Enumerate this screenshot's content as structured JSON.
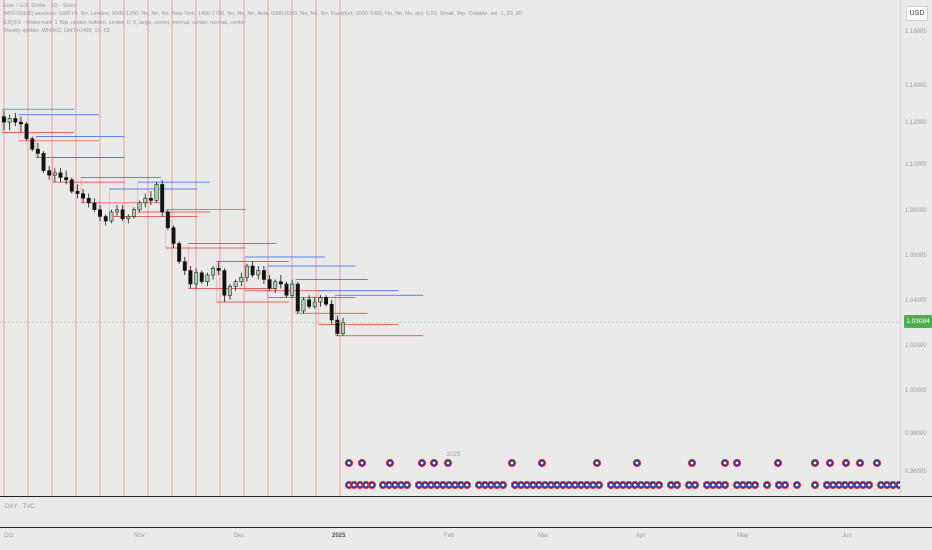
{
  "legend": {
    "symbol_line": "Euro / U.S. Dollar · 1D · Saxo",
    "lines": [
      "[MYFXHUB] sessions: GMT+0, No, London, 0900-1200, No, No, No, New York, 1400-1700, No, No, No, Asia, 0000-0300, No, No, No, Frankfurt, 0900-1000, No, No, No, dot, 0.93, Small, Top, Outside, sol, 1, 20, 80",
      "[LX] FX - Watermark 1 Top, center, bottom, center, 0, 0, large, center, normal, center, normal, center",
      "Weekly splitter: WN/W2, GMT+0400, 10, 63"
    ]
  },
  "price_axis": {
    "currency_button": "USD",
    "ticks": [
      "1.16000",
      "1.14000",
      "1.12000",
      "1.10000",
      "1.08000",
      "1.06000",
      "1.04000",
      "1.02000",
      "1.00000",
      "0.98000",
      "0.96000"
    ],
    "last_price": "1.03084"
  },
  "time_axis": {
    "labels": [
      "Oct",
      "Nov",
      "Dec",
      "2025",
      "Feb",
      "Mar",
      "Apr",
      "May",
      "Jun"
    ]
  },
  "lower_pane": {
    "label": "DXY · TVC"
  },
  "year_marker": "2025",
  "colors": {
    "bull_candle": "#a5d6a7",
    "bear_candle": "#111111",
    "splitter_line": "#ef5350",
    "high_line": "#2962ff",
    "low_line": "#e53935",
    "price_tag": "#4caf50",
    "background": "#eaeaea"
  },
  "chart_data": {
    "type": "candlestick",
    "x_labels": [
      "Oct",
      "Nov",
      "Dec",
      "2025",
      "Feb",
      "Mar",
      "Apr",
      "May",
      "Jun"
    ],
    "ylim": [
      0.95,
      1.17
    ],
    "last_price": 1.03084,
    "ohlc": [
      [
        1.124,
        1.127,
        1.117,
        1.121
      ],
      [
        1.121,
        1.125,
        1.117,
        1.123
      ],
      [
        1.123,
        1.126,
        1.119,
        1.121
      ],
      [
        1.121,
        1.124,
        1.116,
        1.12
      ],
      [
        1.12,
        1.121,
        1.112,
        1.113
      ],
      [
        1.113,
        1.114,
        1.107,
        1.108
      ],
      [
        1.108,
        1.111,
        1.104,
        1.106
      ],
      [
        1.106,
        1.107,
        1.097,
        1.098
      ],
      [
        1.098,
        1.1,
        1.094,
        1.096
      ],
      [
        1.096,
        1.099,
        1.093,
        1.097
      ],
      [
        1.097,
        1.099,
        1.093,
        1.095
      ],
      [
        1.095,
        1.098,
        1.092,
        1.094
      ],
      [
        1.094,
        1.095,
        1.088,
        1.089
      ],
      [
        1.089,
        1.092,
        1.086,
        1.088
      ],
      [
        1.088,
        1.09,
        1.084,
        1.086
      ],
      [
        1.086,
        1.088,
        1.082,
        1.084
      ],
      [
        1.084,
        1.086,
        1.08,
        1.081
      ],
      [
        1.081,
        1.083,
        1.076,
        1.078
      ],
      [
        1.078,
        1.079,
        1.074,
        1.076
      ],
      [
        1.076,
        1.081,
        1.075,
        1.08
      ],
      [
        1.08,
        1.083,
        1.078,
        1.081
      ],
      [
        1.081,
        1.083,
        1.076,
        1.077
      ],
      [
        1.077,
        1.079,
        1.075,
        1.078
      ],
      [
        1.078,
        1.082,
        1.077,
        1.081
      ],
      [
        1.081,
        1.085,
        1.08,
        1.084
      ],
      [
        1.084,
        1.088,
        1.082,
        1.086
      ],
      [
        1.086,
        1.089,
        1.083,
        1.085
      ],
      [
        1.085,
        1.093,
        1.084,
        1.092
      ],
      [
        1.092,
        1.094,
        1.078,
        1.08
      ],
      [
        1.08,
        1.081,
        1.072,
        1.073
      ],
      [
        1.073,
        1.074,
        1.064,
        1.066
      ],
      [
        1.066,
        1.067,
        1.057,
        1.058
      ],
      [
        1.058,
        1.06,
        1.052,
        1.054
      ],
      [
        1.054,
        1.056,
        1.046,
        1.048
      ],
      [
        1.048,
        1.055,
        1.046,
        1.053
      ],
      [
        1.053,
        1.054,
        1.048,
        1.049
      ],
      [
        1.049,
        1.053,
        1.047,
        1.052
      ],
      [
        1.052,
        1.056,
        1.05,
        1.055
      ],
      [
        1.055,
        1.058,
        1.052,
        1.054
      ],
      [
        1.054,
        1.055,
        1.04,
        1.043
      ],
      [
        1.043,
        1.048,
        1.041,
        1.047
      ],
      [
        1.047,
        1.05,
        1.045,
        1.049
      ],
      [
        1.049,
        1.053,
        1.047,
        1.051
      ],
      [
        1.051,
        1.057,
        1.049,
        1.056
      ],
      [
        1.056,
        1.058,
        1.051,
        1.052
      ],
      [
        1.052,
        1.056,
        1.05,
        1.054
      ],
      [
        1.054,
        1.056,
        1.048,
        1.05
      ],
      [
        1.05,
        1.052,
        1.045,
        1.046
      ],
      [
        1.046,
        1.05,
        1.044,
        1.049
      ],
      [
        1.049,
        1.052,
        1.046,
        1.048
      ],
      [
        1.048,
        1.049,
        1.042,
        1.043
      ],
      [
        1.043,
        1.05,
        1.042,
        1.048
      ],
      [
        1.048,
        1.049,
        1.035,
        1.036
      ],
      [
        1.036,
        1.042,
        1.035,
        1.041
      ],
      [
        1.041,
        1.043,
        1.037,
        1.038
      ],
      [
        1.038,
        1.042,
        1.037,
        1.04
      ],
      [
        1.04,
        1.043,
        1.038,
        1.042
      ],
      [
        1.042,
        1.043,
        1.038,
        1.039
      ],
      [
        1.039,
        1.041,
        1.03,
        1.032
      ],
      [
        1.032,
        1.034,
        1.025,
        1.026
      ],
      [
        1.026,
        1.033,
        1.025,
        1.031
      ]
    ],
    "weekly_levels": [
      {
        "start": 0,
        "high": 1.128,
        "low": 1.116
      },
      {
        "start": 3,
        "high": 1.125,
        "low": 1.112
      },
      {
        "start": 6,
        "high": 1.114,
        "low": 1.104
      },
      {
        "start": 9,
        "high": 1.104,
        "low": 1.093
      },
      {
        "start": 14,
        "high": 1.095,
        "low": 1.084
      },
      {
        "start": 19,
        "high": 1.09,
        "low": 1.078
      },
      {
        "start": 24,
        "high": 1.093,
        "low": 1.08
      },
      {
        "start": 29,
        "high": 1.081,
        "low": 1.064
      },
      {
        "start": 33,
        "high": 1.066,
        "low": 1.046
      },
      {
        "start": 38,
        "high": 1.058,
        "low": 1.04
      },
      {
        "start": 43,
        "high": 1.06,
        "low": 1.045
      },
      {
        "start": 47,
        "high": 1.056,
        "low": 1.042
      },
      {
        "start": 52,
        "high": 1.05,
        "low": 1.035
      },
      {
        "start": 56,
        "high": 1.045,
        "low": 1.03
      },
      {
        "start": 59,
        "high": 1.043,
        "low": 1.025
      }
    ],
    "event_rows": [
      [
        349,
        362,
        390,
        422,
        434,
        448,
        512,
        542,
        597,
        637,
        692,
        725,
        737,
        778,
        815,
        830,
        846,
        860,
        877
      ],
      [
        349,
        354,
        360,
        366,
        372,
        383,
        389,
        395,
        401,
        407,
        419,
        425,
        431,
        437,
        443,
        449,
        455,
        461,
        467,
        479,
        485,
        491,
        497,
        503,
        515,
        521,
        527,
        533,
        539,
        545,
        551,
        557,
        563,
        569,
        575,
        581,
        587,
        593,
        599,
        611,
        617,
        623,
        629,
        635,
        641,
        647,
        653,
        659,
        671,
        677,
        689,
        695,
        707,
        713,
        719,
        725,
        737,
        743,
        749,
        755,
        767,
        779,
        785,
        797,
        815,
        827,
        833,
        839,
        845,
        851,
        857,
        863,
        869,
        881,
        887,
        893,
        899
      ]
    ]
  }
}
